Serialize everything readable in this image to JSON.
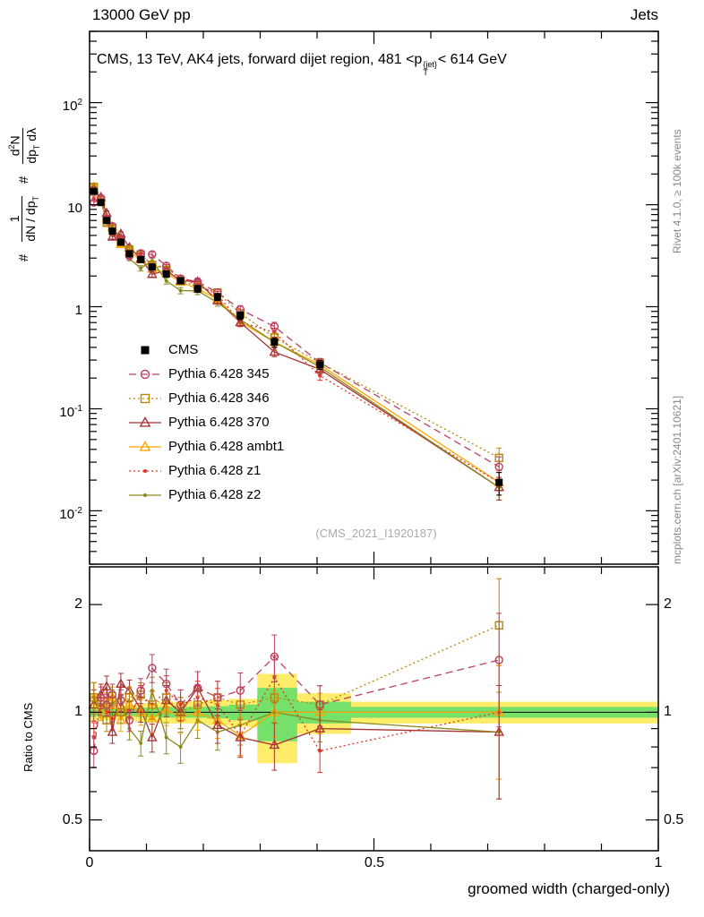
{
  "header": {
    "left": "13000 GeV pp",
    "right": "Jets"
  },
  "title": {
    "pre": "CMS, 13 TeV, AK4 jets, forward dijet region, 481 <p",
    "sup": "{jet}",
    "sub": "T",
    "post": "< 614 GeV"
  },
  "ylabel": {
    "hash1": "#",
    "frac1_num": "1",
    "frac1_den_a": "dN / dp",
    "frac1_den_sub": "T",
    "hash2": "#",
    "frac2_num_a": "d",
    "frac2_num_sup": "2",
    "frac2_num_b": "N",
    "frac2_den_a": "dp",
    "frac2_den_sub": "T",
    "frac2_den_b": " dλ"
  },
  "ratio_ylabel": "Ratio to CMS",
  "xlabel": "groomed width (charged-only)",
  "watermark": "(CMS_2021_I1920187)",
  "credits": {
    "rivet": "Rivet 4.1.0, ≥ 100k events",
    "mcplots": "mcplots.cern.ch [arXiv:2401.10621]"
  },
  "axes": {
    "main_y_labels": [
      {
        "base": "10",
        "exp": "2"
      },
      {
        "base": "10",
        "exp": ""
      },
      {
        "base": "1",
        "exp": ""
      },
      {
        "base": "10",
        "exp": "-1"
      },
      {
        "base": "10",
        "exp": "-2"
      }
    ],
    "ratio_y_labels": [
      "2",
      "1",
      "0.5"
    ],
    "x_labels": [
      "0",
      "0.5",
      "1"
    ]
  },
  "colors": {
    "band_yellow": "#ffe94e",
    "band_green": "#66e06a"
  },
  "chart_data": [
    {
      "type": "scatter-line",
      "panel": "main",
      "title": "CMS, 13 TeV, AK4 jets, forward dijet region, 481 < pT^{jet} < 614 GeV",
      "ylabel": "1/(dN/dpT) d2N/(dpT dlambda)",
      "xlabel": "groomed width (charged-only)",
      "yscale": "log",
      "xlim": [
        0,
        1
      ],
      "ylim": [
        0.003,
        500
      ],
      "x": [
        0.0075,
        0.02,
        0.03,
        0.04,
        0.055,
        0.07,
        0.09,
        0.11,
        0.135,
        0.16,
        0.19,
        0.225,
        0.265,
        0.325,
        0.405,
        0.72
      ],
      "rel_err": [
        0.06,
        0.05,
        0.05,
        0.05,
        0.05,
        0.05,
        0.06,
        0.06,
        0.07,
        0.07,
        0.08,
        0.08,
        0.09,
        0.1,
        0.1,
        0.25
      ],
      "series": [
        {
          "name": "CMS",
          "color": "#000000",
          "marker": "filled-square",
          "linestyle": "none",
          "values": [
            13.5,
            10.5,
            7.0,
            5.5,
            4.3,
            3.3,
            2.9,
            2.45,
            2.1,
            1.8,
            1.5,
            1.25,
            0.82,
            0.45,
            0.27,
            0.019
          ]
        },
        {
          "name": "Pythia 6.428 345",
          "color": "#bb4060",
          "marker": "open-circle",
          "linestyle": "dashed",
          "values": [
            10.5,
            11.6,
            7.35,
            6.16,
            4.64,
            3.14,
            3.34,
            3.26,
            2.52,
            1.89,
            1.76,
            1.38,
            0.94,
            0.64,
            0.283,
            0.027
          ]
        },
        {
          "name": "Pythia 6.428 346",
          "color": "#b8860b",
          "marker": "open-square",
          "linestyle": "dotted",
          "values": [
            14.9,
            11.0,
            6.65,
            5.94,
            4.3,
            3.63,
            3.25,
            2.57,
            2.31,
            1.8,
            1.58,
            1.38,
            0.86,
            0.5,
            0.283,
            0.033
          ]
        },
        {
          "name": "Pythia 6.428 370",
          "color": "#a63333",
          "marker": "open-triangle",
          "linestyle": "solid",
          "values": [
            14.2,
            11.8,
            8.26,
            4.84,
            5.16,
            3.8,
            2.96,
            2.08,
            2.27,
            1.8,
            1.76,
            1.15,
            0.7,
            0.36,
            0.243,
            0.017
          ]
        },
        {
          "name": "Pythia 6.428 ambt1",
          "color": "#ffa500",
          "marker": "open-triangle",
          "linestyle": "solid",
          "values": [
            14.9,
            10.7,
            7.42,
            6.05,
            4.09,
            3.47,
            2.9,
            2.35,
            2.14,
            1.75,
            1.5,
            1.19,
            0.71,
            0.45,
            0.27,
            0.019
          ]
        },
        {
          "name": "Pythia 6.428 z1",
          "color": "#e63322",
          "marker": "dot",
          "linestyle": "dotted",
          "values": [
            11.5,
            11.0,
            7.0,
            5.28,
            4.52,
            3.3,
            3.19,
            2.57,
            2.42,
            1.89,
            1.65,
            1.31,
            0.71,
            0.56,
            0.211,
            0.019
          ]
        },
        {
          "name": "Pythia 6.428 z2",
          "color": "#8a8a1e",
          "marker": "dot",
          "linestyle": "solid",
          "values": [
            14.9,
            10.9,
            7.0,
            5.83,
            4.73,
            2.97,
            2.38,
            2.82,
            1.79,
            1.44,
            1.43,
            1.1,
            0.75,
            0.45,
            0.257,
            0.017
          ]
        }
      ]
    },
    {
      "type": "ratio",
      "panel": "ratio",
      "ylabel": "Ratio to CMS",
      "yscale": "log",
      "xlim": [
        0,
        1
      ],
      "ylim": [
        0.41,
        2.55
      ],
      "yticks": [
        0.5,
        0.6,
        0.7,
        0.8,
        0.9,
        1,
        2
      ],
      "x": [
        0.0075,
        0.02,
        0.03,
        0.04,
        0.055,
        0.07,
        0.09,
        0.11,
        0.135,
        0.16,
        0.19,
        0.225,
        0.265,
        0.325,
        0.405,
        0.72
      ],
      "rel_err": [
        0.1,
        0.07,
        0.07,
        0.07,
        0.07,
        0.07,
        0.08,
        0.09,
        0.1,
        0.1,
        0.11,
        0.11,
        0.12,
        0.15,
        0.13,
        0.35
      ],
      "bands": {
        "edges": [
          0,
          0.012,
          0.025,
          0.035,
          0.047,
          0.062,
          0.08,
          0.1,
          0.122,
          0.147,
          0.175,
          0.207,
          0.245,
          0.295,
          0.365,
          0.46,
          1.0
        ],
        "yellow": [
          0.06,
          0.05,
          0.05,
          0.05,
          0.05,
          0.05,
          0.06,
          0.06,
          0.07,
          0.07,
          0.07,
          0.08,
          0.09,
          0.28,
          0.13,
          0.07
        ],
        "green": [
          0.03,
          0.025,
          0.025,
          0.025,
          0.025,
          0.025,
          0.03,
          0.03,
          0.035,
          0.035,
          0.035,
          0.04,
          0.05,
          0.17,
          0.07,
          0.035
        ]
      },
      "series": [
        {
          "name": "Pythia 6.428 345",
          "color": "#bb4060",
          "marker": "open-circle",
          "linestyle": "dashed",
          "values": [
            0.78,
            1.1,
            1.05,
            1.12,
            1.08,
            0.95,
            1.15,
            1.33,
            1.2,
            1.05,
            1.17,
            1.1,
            1.15,
            1.43,
            1.05,
            1.4
          ]
        },
        {
          "name": "Pythia 6.428 346",
          "color": "#b8860b",
          "marker": "open-square",
          "linestyle": "dotted",
          "values": [
            1.1,
            1.05,
            0.95,
            1.08,
            1.0,
            1.1,
            1.12,
            1.05,
            1.1,
            1.0,
            1.05,
            1.1,
            1.05,
            1.1,
            1.05,
            1.75
          ]
        },
        {
          "name": "Pythia 6.428 370",
          "color": "#a63333",
          "marker": "open-triangle",
          "linestyle": "solid",
          "values": [
            1.05,
            1.12,
            1.18,
            0.88,
            1.2,
            1.15,
            1.02,
            0.85,
            1.08,
            1.0,
            1.17,
            0.92,
            0.85,
            0.81,
            0.9,
            0.88
          ]
        },
        {
          "name": "Pythia 6.428 ambt1",
          "color": "#ffa500",
          "marker": "open-triangle",
          "linestyle": "solid",
          "values": [
            1.1,
            1.02,
            1.06,
            1.1,
            0.95,
            1.05,
            1.0,
            0.96,
            1.02,
            0.97,
            1.0,
            0.95,
            0.86,
            1.0,
            1.0,
            1.0
          ]
        },
        {
          "name": "Pythia 6.428 z1",
          "color": "#e63322",
          "marker": "dot",
          "linestyle": "dotted",
          "values": [
            0.85,
            1.05,
            1.0,
            0.96,
            1.05,
            1.0,
            1.1,
            1.05,
            1.15,
            1.05,
            1.1,
            1.05,
            0.86,
            1.25,
            0.78,
            1.0
          ]
        },
        {
          "name": "Pythia 6.428 z2",
          "color": "#8a8a1e",
          "marker": "dot",
          "linestyle": "solid",
          "values": [
            1.1,
            1.04,
            1.0,
            1.06,
            1.1,
            0.9,
            0.82,
            1.15,
            0.85,
            0.8,
            0.95,
            0.88,
            0.92,
            1.0,
            0.95,
            0.88
          ]
        }
      ]
    }
  ]
}
